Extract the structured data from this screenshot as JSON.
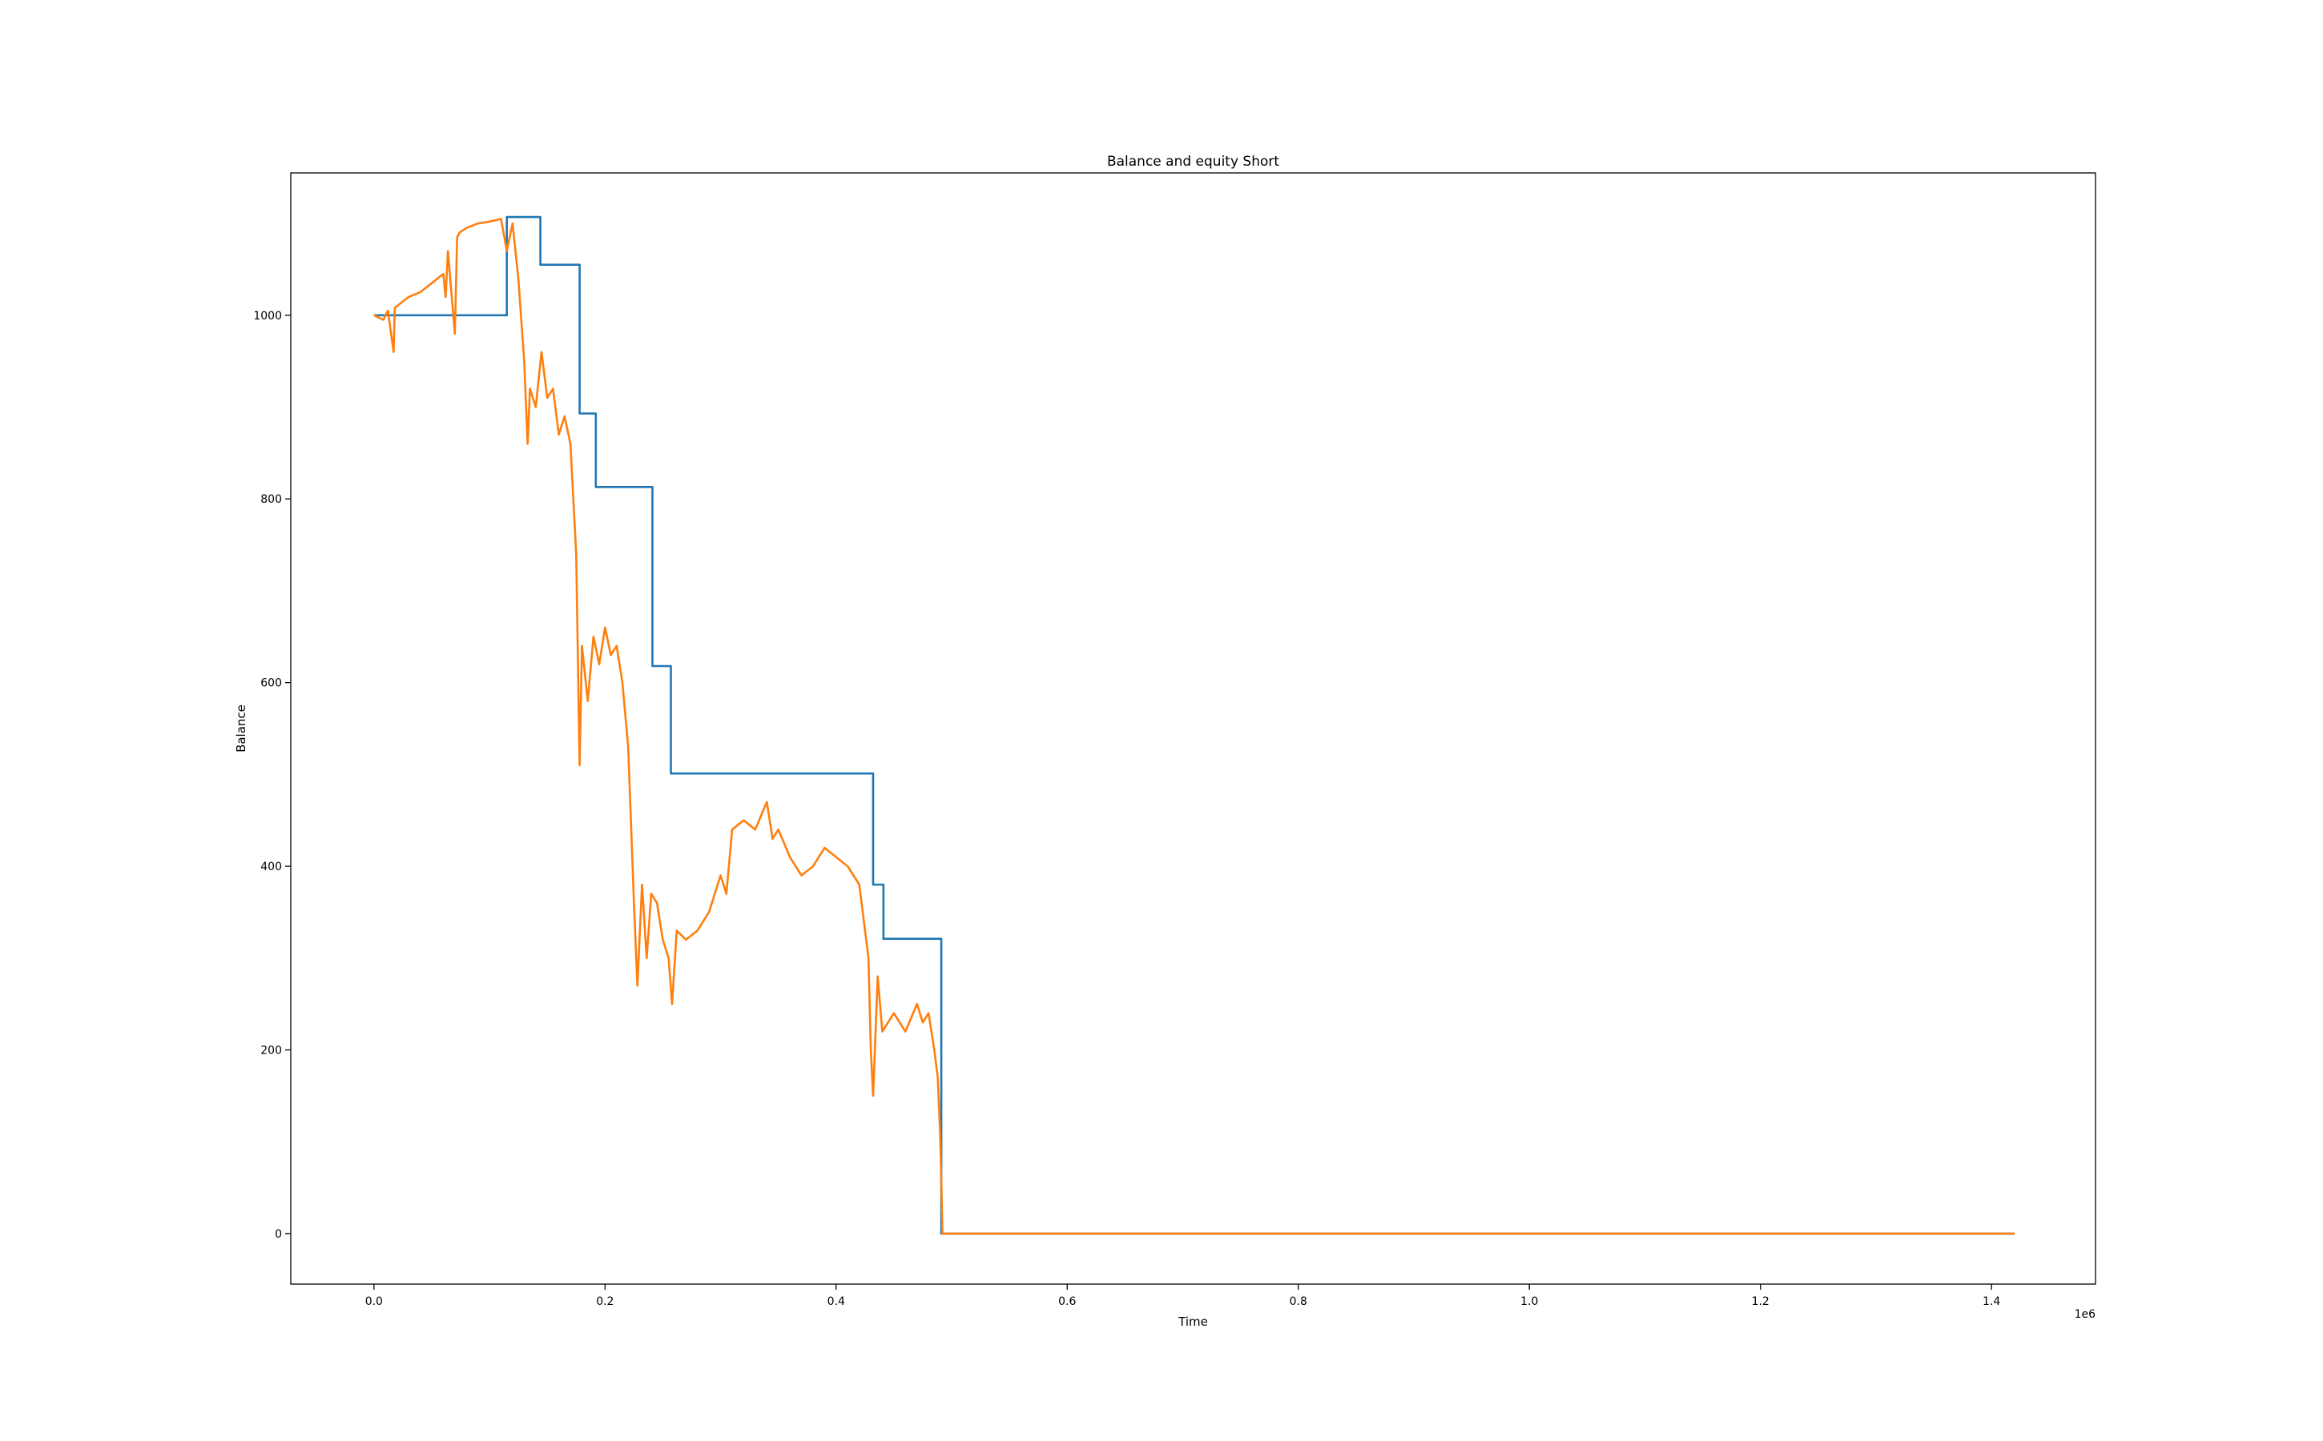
{
  "chart_data": {
    "type": "line",
    "title": "Balance and equity Short",
    "xlabel": "Time",
    "ylabel": "Balance",
    "x_offset_label": "1e6",
    "xlim": [
      -0.072,
      1.49
    ],
    "ylim": [
      -55,
      1155
    ],
    "xticks": [
      0.0,
      0.2,
      0.4,
      0.6,
      0.8,
      1.0,
      1.2,
      1.4
    ],
    "xtick_labels": [
      "0.0",
      "0.2",
      "0.4",
      "0.6",
      "0.8",
      "1.0",
      "1.2",
      "1.4"
    ],
    "yticks": [
      0,
      200,
      400,
      600,
      800,
      1000
    ],
    "ytick_labels": [
      "0",
      "200",
      "400",
      "600",
      "800",
      "1000"
    ],
    "grid": false,
    "series": [
      {
        "color": "#1f77b4",
        "x": [
          0.0,
          0.115,
          0.115,
          0.144,
          0.144,
          0.178,
          0.178,
          0.192,
          0.192,
          0.241,
          0.241,
          0.257,
          0.257,
          0.432,
          0.432,
          0.441,
          0.441,
          0.491,
          0.491,
          1.42
        ],
        "y": [
          1000,
          1000,
          1107,
          1107,
          1055,
          1055,
          893,
          893,
          813,
          813,
          618,
          618,
          501,
          501,
          380,
          380,
          321,
          321,
          0,
          0
        ]
      },
      {
        "color": "#ff7f0e",
        "x": [
          0.0,
          0.008,
          0.012,
          0.017,
          0.018,
          0.02,
          0.03,
          0.04,
          0.05,
          0.06,
          0.062,
          0.064,
          0.07,
          0.072,
          0.074,
          0.08,
          0.09,
          0.1,
          0.11,
          0.115,
          0.12,
          0.125,
          0.13,
          0.133,
          0.135,
          0.14,
          0.145,
          0.15,
          0.155,
          0.16,
          0.165,
          0.17,
          0.175,
          0.178,
          0.18,
          0.185,
          0.19,
          0.195,
          0.2,
          0.205,
          0.21,
          0.215,
          0.22,
          0.225,
          0.228,
          0.232,
          0.236,
          0.24,
          0.245,
          0.25,
          0.255,
          0.258,
          0.262,
          0.27,
          0.28,
          0.29,
          0.3,
          0.305,
          0.31,
          0.32,
          0.33,
          0.34,
          0.345,
          0.35,
          0.36,
          0.37,
          0.38,
          0.39,
          0.4,
          0.41,
          0.42,
          0.428,
          0.43,
          0.432,
          0.436,
          0.44,
          0.45,
          0.46,
          0.47,
          0.475,
          0.48,
          0.485,
          0.488,
          0.49,
          0.491,
          0.492,
          0.5,
          1.42
        ],
        "y": [
          1000,
          995,
          1005,
          960,
          1008,
          1010,
          1020,
          1025,
          1035,
          1045,
          1020,
          1070,
          980,
          1085,
          1090,
          1095,
          1100,
          1102,
          1105,
          1070,
          1100,
          1040,
          950,
          860,
          920,
          900,
          960,
          910,
          920,
          870,
          890,
          860,
          740,
          510,
          640,
          580,
          650,
          620,
          660,
          630,
          640,
          600,
          530,
          360,
          270,
          380,
          300,
          370,
          360,
          320,
          300,
          250,
          330,
          320,
          330,
          350,
          390,
          370,
          440,
          450,
          440,
          470,
          430,
          440,
          410,
          390,
          400,
          420,
          410,
          400,
          380,
          300,
          200,
          150,
          280,
          220,
          240,
          220,
          250,
          230,
          240,
          200,
          170,
          110,
          60,
          0,
          0,
          0
        ]
      }
    ]
  }
}
